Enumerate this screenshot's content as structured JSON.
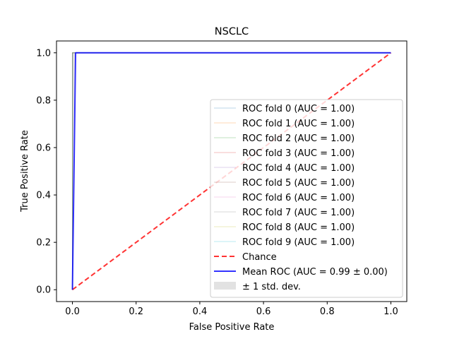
{
  "chart_data": {
    "type": "line",
    "title": "NSCLC",
    "xlabel": "False Positive Rate",
    "ylabel": "True Positive Rate",
    "xlim": [
      -0.05,
      1.05
    ],
    "ylim": [
      -0.05,
      1.05
    ],
    "xticks": [
      0.0,
      0.2,
      0.4,
      0.6,
      0.8,
      1.0
    ],
    "yticks": [
      0.0,
      0.2,
      0.4,
      0.6,
      0.8,
      1.0
    ],
    "tick_labels": [
      "0.0",
      "0.2",
      "0.4",
      "0.6",
      "0.8",
      "1.0"
    ],
    "grid": false,
    "legend_position": "lower-right",
    "series": [
      {
        "name": "ROC fold 0 (AUC = 1.00)",
        "color": "#1f77b4",
        "kind": "fold",
        "x": [
          0.0,
          0.0,
          1.0
        ],
        "y": [
          0.0,
          1.0,
          1.0
        ]
      },
      {
        "name": "ROC fold 1 (AUC = 1.00)",
        "color": "#ff7f0e",
        "kind": "fold",
        "x": [
          0.0,
          0.0,
          1.0
        ],
        "y": [
          0.0,
          1.0,
          1.0
        ]
      },
      {
        "name": "ROC fold 2 (AUC = 1.00)",
        "color": "#2ca02c",
        "kind": "fold",
        "x": [
          0.0,
          0.0,
          1.0
        ],
        "y": [
          0.0,
          1.0,
          1.0
        ]
      },
      {
        "name": "ROC fold 3 (AUC = 1.00)",
        "color": "#d62728",
        "kind": "fold",
        "x": [
          0.0,
          0.0,
          1.0
        ],
        "y": [
          0.0,
          1.0,
          1.0
        ]
      },
      {
        "name": "ROC fold 4 (AUC = 1.00)",
        "color": "#9467bd",
        "kind": "fold",
        "x": [
          0.0,
          0.0,
          1.0
        ],
        "y": [
          0.0,
          1.0,
          1.0
        ]
      },
      {
        "name": "ROC fold 5 (AUC = 1.00)",
        "color": "#8c564b",
        "kind": "fold",
        "x": [
          0.0,
          0.0,
          1.0
        ],
        "y": [
          0.0,
          1.0,
          1.0
        ]
      },
      {
        "name": "ROC fold 6 (AUC = 1.00)",
        "color": "#e377c2",
        "kind": "fold",
        "x": [
          0.0,
          0.0,
          1.0
        ],
        "y": [
          0.0,
          1.0,
          1.0
        ]
      },
      {
        "name": "ROC fold 7 (AUC = 1.00)",
        "color": "#7f7f7f",
        "kind": "fold",
        "x": [
          0.0,
          0.0,
          1.0
        ],
        "y": [
          0.0,
          1.0,
          1.0
        ]
      },
      {
        "name": "ROC fold 8 (AUC = 1.00)",
        "color": "#bcbd22",
        "kind": "fold",
        "x": [
          0.0,
          0.0,
          1.0
        ],
        "y": [
          0.0,
          1.0,
          1.0
        ]
      },
      {
        "name": "ROC fold 9 (AUC = 1.00)",
        "color": "#17becf",
        "kind": "fold",
        "x": [
          0.0,
          0.0,
          1.0
        ],
        "y": [
          0.0,
          1.0,
          1.0
        ]
      },
      {
        "name": "Chance",
        "color": "#ff0000",
        "kind": "chance",
        "x": [
          0.0,
          1.0
        ],
        "y": [
          0.0,
          1.0
        ]
      },
      {
        "name": "Mean ROC (AUC = 0.99 ± 0.00)",
        "color": "#0000ff",
        "kind": "mean",
        "x": [
          0.0,
          0.01,
          1.0
        ],
        "y": [
          0.0,
          1.0,
          1.0
        ]
      }
    ],
    "std_band": {
      "name": "± 1 std. dev.",
      "color": "#bfbfbf",
      "x": [
        0.0,
        0.01,
        1.0
      ],
      "lower": [
        0.0,
        1.0,
        1.0
      ],
      "upper": [
        1.0,
        1.0,
        1.0
      ]
    }
  }
}
